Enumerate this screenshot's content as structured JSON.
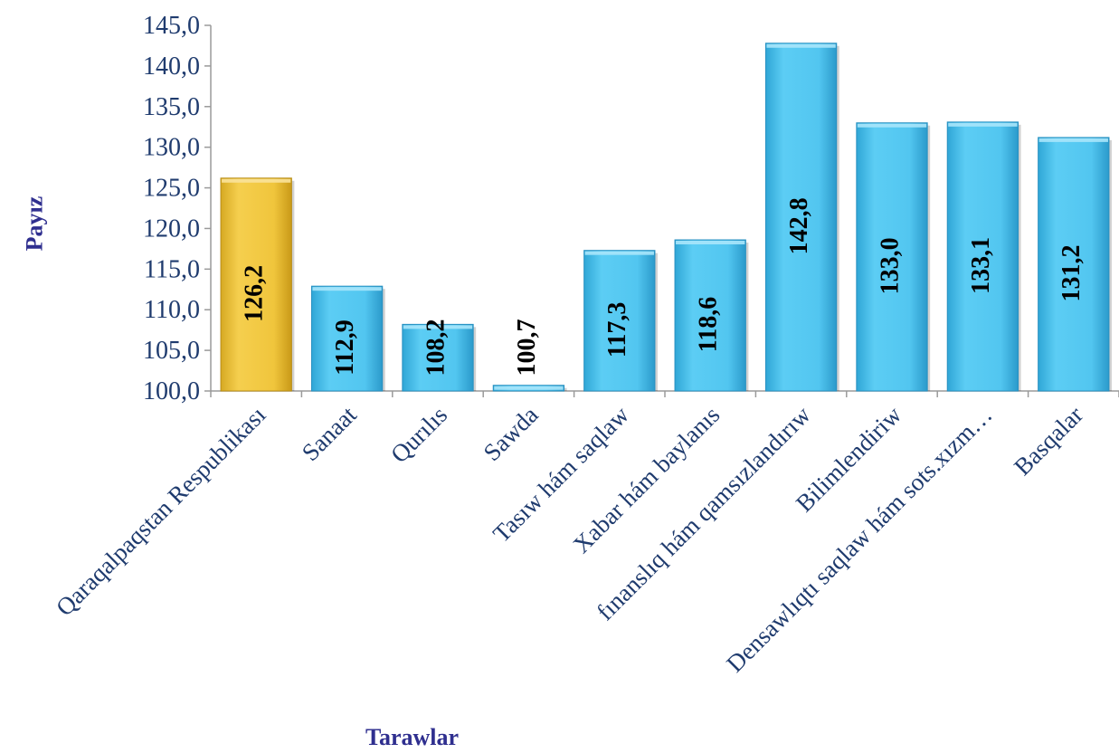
{
  "chart_data": {
    "type": "bar",
    "title": "",
    "xlabel": "Tarawlar",
    "ylabel": "Payız",
    "ylim": [
      100,
      145
    ],
    "yticks": [
      "100,0",
      "105,0",
      "110,0",
      "115,0",
      "120,0",
      "125,0",
      "130,0",
      "135,0",
      "140,0",
      "145,0"
    ],
    "ytick_values": [
      100,
      105,
      110,
      115,
      120,
      125,
      130,
      135,
      140,
      145
    ],
    "categories": [
      "Qaraqalpaqstan Respublikası",
      "Sanaat",
      "Qurılıs",
      "Sawda",
      "Tasıw hám saqlaw",
      "Xabar hám baylanıs",
      "fınanslıq hám qamsızlandırıw",
      "Bilimlendiriw",
      "Densawlıqtı saqlaw hám sots.xızm…",
      "Basqalar"
    ],
    "values": [
      126.2,
      112.9,
      108.2,
      100.7,
      117.3,
      118.6,
      142.8,
      133.0,
      133.1,
      131.2
    ],
    "value_labels": [
      "126,2",
      "112,9",
      "108,2",
      "100,7",
      "117,3",
      "118,6",
      "142,8",
      "133,0",
      "133,1",
      "131,2"
    ],
    "highlight_index": 0,
    "colors": {
      "highlight": "#f0c53c",
      "bar": "#4ec3ee",
      "axis_text": "#1f3b6e",
      "axis_title": "#2f2f8f",
      "value_text": "#000000"
    },
    "grid": false,
    "legend": "none"
  }
}
